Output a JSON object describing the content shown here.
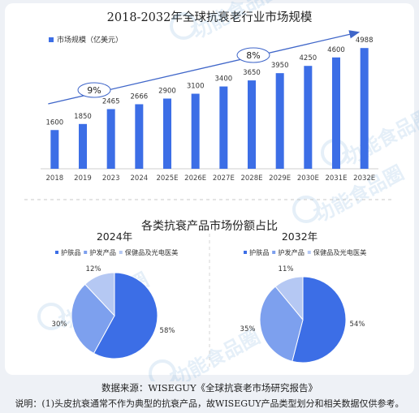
{
  "title": "2018-2032年全球抗衰老行业市场规模",
  "section2_title": "各类抗衰产品市场份额占比",
  "footer_source": "数据来源：WISEGUY《全球抗衰老市场研究报告》",
  "footer_note": "说明：(1)头皮抗衰通常不作为典型的抗衰产品，故WISEGUY产品类型划分和相关数据仅供参考。",
  "watermark_text": "功能食品圈",
  "colors": {
    "bar": "#3c6ee6",
    "arrow": "#3f66c9",
    "pie_main": "#3c6ee6",
    "pie_mid": "#7da0ee",
    "pie_light": "#b5c8f3"
  },
  "chart_data": [
    {
      "type": "bar",
      "legend": [
        "市场规模（亿美元）"
      ],
      "categories": [
        "2018",
        "2019",
        "2023",
        "2024",
        "2025E",
        "2026E",
        "2027E",
        "2028E",
        "2029E",
        "2030E",
        "2031E",
        "2032E"
      ],
      "values": [
        1600,
        1850,
        2465,
        2666,
        2900,
        3100,
        3400,
        3650,
        3950,
        4250,
        4600,
        4988
      ],
      "annotations": [
        "9%",
        "8%"
      ],
      "ylim": [
        0,
        6000
      ]
    },
    {
      "type": "pie",
      "title": "2024年",
      "legend": [
        "护肤品",
        "护发产品",
        "保健品及光电医美"
      ],
      "values": [
        58,
        30,
        12
      ],
      "labels": [
        "58%",
        "30%",
        "12%"
      ]
    },
    {
      "type": "pie",
      "title": "2032年",
      "legend": [
        "护肤品",
        "护发产品",
        "保健品及光电医美"
      ],
      "values": [
        54,
        35,
        11
      ],
      "labels": [
        "54%",
        "35%",
        "11%"
      ]
    }
  ]
}
